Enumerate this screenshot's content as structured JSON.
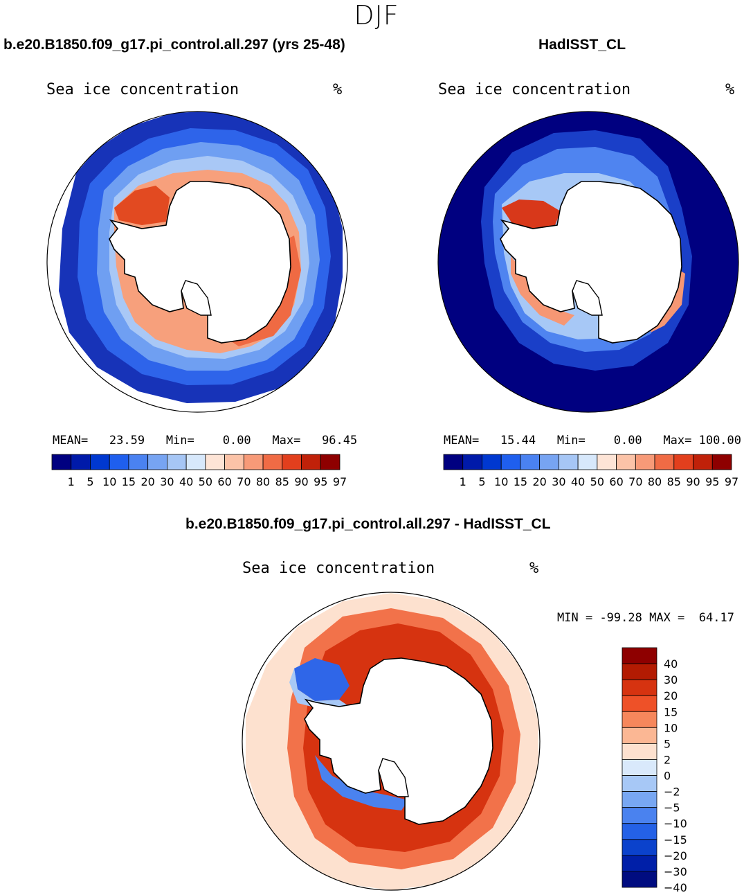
{
  "figure": {
    "season": "DJF",
    "colors": {
      "land": "#ffffff",
      "coast": "#000000",
      "ice_scale": [
        "#000080",
        "#001aa9",
        "#0038d0",
        "#1f5fee",
        "#4a82f1",
        "#77a4f2",
        "#a6c6f5",
        "#d7e8fb",
        "#fde4d6",
        "#fbc3a8",
        "#f79a78",
        "#f06b45",
        "#e23f1d",
        "#c02109",
        "#8e0000"
      ],
      "diff_scale": [
        "#8e0000",
        "#b31b02",
        "#d63310",
        "#ee5128",
        "#f6875c",
        "#fbb794",
        "#fde1cf",
        "#d9e9fb",
        "#a7c8f6",
        "#78a7f2",
        "#4a82ef",
        "#2461e6",
        "#0b42cc",
        "#001fa8",
        "#000c80"
      ]
    }
  },
  "panels": [
    {
      "id": "model",
      "case_title": "b.e20.B1850.f09_g17.pi_control.all.297 (yrs 25-48)",
      "plot_title": "Sea ice concentration",
      "units": "%",
      "stats": {
        "mean_label": "MEAN=",
        "mean": "23.59",
        "min_label": "Min=",
        "min": "0.00",
        "max_label": "Max=",
        "max": "96.45"
      }
    },
    {
      "id": "obs",
      "case_title": "HadISST_CL",
      "plot_title": "Sea ice concentration",
      "units": "%",
      "stats": {
        "mean_label": "MEAN=",
        "mean": "15.44",
        "min_label": "Min=",
        "min": "0.00",
        "max_label": "Max=",
        "max": "100.00"
      }
    }
  ],
  "diff_panel": {
    "case_title": "b.e20.B1850.f09_g17.pi_control.all.297 - HadISST_CL",
    "plot_title": "Sea ice concentration",
    "units": "%",
    "stats": {
      "min_label": "MIN =",
      "min": "-99.28",
      "max_label": "MAX =",
      "max": "64.17"
    }
  },
  "chart_data": [
    {
      "type": "heatmap",
      "title": "Sea ice concentration",
      "projection": "south polar stereographic",
      "units": "%",
      "colorbar_levels": [
        "1",
        "5",
        "10",
        "15",
        "20",
        "30",
        "40",
        "50",
        "60",
        "70",
        "80",
        "85",
        "90",
        "95",
        "97"
      ],
      "mean": 23.59,
      "min": 0.0,
      "max": 96.45
    },
    {
      "type": "heatmap",
      "title": "Sea ice concentration",
      "projection": "south polar stereographic",
      "units": "%",
      "colorbar_levels": [
        "1",
        "5",
        "10",
        "15",
        "20",
        "30",
        "40",
        "50",
        "60",
        "70",
        "80",
        "85",
        "90",
        "95",
        "97"
      ],
      "mean": 15.44,
      "min": 0.0,
      "max": 100.0
    },
    {
      "type": "heatmap",
      "title": "Sea ice concentration",
      "projection": "south polar stereographic",
      "units": "%",
      "colorbar_levels": [
        "40",
        "30",
        "20",
        "15",
        "10",
        "5",
        "2",
        "0",
        "−2",
        "−5",
        "−10",
        "−15",
        "−20",
        "−30",
        "−40"
      ],
      "min": -99.28,
      "max": 64.17
    }
  ]
}
